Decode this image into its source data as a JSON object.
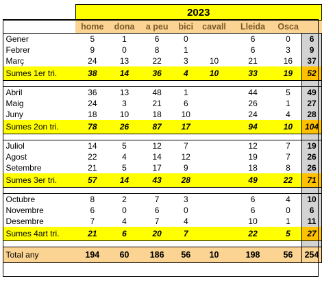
{
  "title": "2023",
  "headers": [
    "home",
    "dona",
    "a peu",
    "bici",
    "cavall",
    "Lleida",
    "Osca"
  ],
  "blocks": [
    {
      "rows": [
        {
          "label": "Gener",
          "cells": [
            "5",
            "1",
            "6",
            "0",
            "",
            "6",
            "0"
          ],
          "total": "6"
        },
        {
          "label": "Febrer",
          "cells": [
            "9",
            "0",
            "8",
            "1",
            "",
            "6",
            "3"
          ],
          "total": "9"
        },
        {
          "label": "Març",
          "cells": [
            "24",
            "13",
            "22",
            "3",
            "10",
            "21",
            "16"
          ],
          "total": "37"
        }
      ],
      "sum": {
        "label": "Sumes 1er tri.",
        "cells": [
          "38",
          "14",
          "36",
          "4",
          "10",
          "33",
          "19"
        ],
        "total": "52"
      }
    },
    {
      "rows": [
        {
          "label": "Abril",
          "cells": [
            "36",
            "13",
            "48",
            "1",
            "",
            "44",
            "5"
          ],
          "total": "49"
        },
        {
          "label": "Maig",
          "cells": [
            "24",
            "3",
            "21",
            "6",
            "",
            "26",
            "1"
          ],
          "total": "27"
        },
        {
          "label": "Juny",
          "cells": [
            "18",
            "10",
            "18",
            "10",
            "",
            "24",
            "4"
          ],
          "total": "28"
        }
      ],
      "sum": {
        "label": "Sumes 2on tri.",
        "cells": [
          "78",
          "26",
          "87",
          "17",
          "",
          "94",
          "10"
        ],
        "total": "104"
      }
    },
    {
      "rows": [
        {
          "label": "Juliol",
          "cells": [
            "14",
            "5",
            "12",
            "7",
            "",
            "12",
            "7"
          ],
          "total": "19"
        },
        {
          "label": "Agost",
          "cells": [
            "22",
            "4",
            "14",
            "12",
            "",
            "19",
            "7"
          ],
          "total": "26"
        },
        {
          "label": "Setembre",
          "cells": [
            "21",
            "5",
            "17",
            "9",
            "",
            "18",
            "8"
          ],
          "total": "26"
        }
      ],
      "sum": {
        "label": "Sumes 3er tri.",
        "cells": [
          "57",
          "14",
          "43",
          "28",
          "",
          "49",
          "22"
        ],
        "total": "71"
      }
    },
    {
      "rows": [
        {
          "label": "Octubre",
          "cells": [
            "8",
            "2",
            "7",
            "3",
            "",
            "6",
            "4"
          ],
          "total": "10"
        },
        {
          "label": "Novembre",
          "cells": [
            "6",
            "0",
            "6",
            "0",
            "",
            "6",
            "0"
          ],
          "total": "6"
        },
        {
          "label": "Desembre",
          "cells": [
            "7",
            "4",
            "7",
            "4",
            "",
            "10",
            "1"
          ],
          "total": "11"
        }
      ],
      "sum": {
        "label": "Sumes 4art tri.",
        "cells": [
          "21",
          "6",
          "20",
          "7",
          "",
          "22",
          "5"
        ],
        "total": "27"
      }
    }
  ],
  "grand_total": {
    "label": "Total any",
    "cells": [
      "194",
      "60",
      "186",
      "56",
      "10",
      "198",
      "56"
    ],
    "total": "254"
  },
  "colors": {
    "title_bg": "#ffff00",
    "header_bg": "#fbd392",
    "sum_bg": "#ffff00",
    "sum_total_bg": "#ffc000",
    "total_col_bg": "#d3d3d3"
  }
}
